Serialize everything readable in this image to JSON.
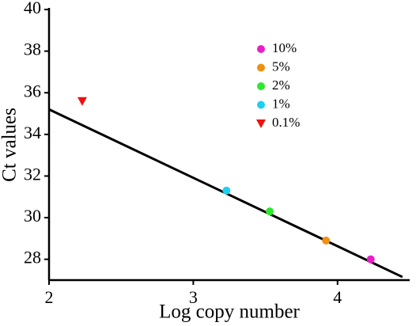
{
  "chart_data": {
    "type": "scatter",
    "xlabel": "Log copy number",
    "ylabel": "Ct values",
    "xlim": [
      2,
      4.5
    ],
    "ylim": [
      27,
      40
    ],
    "xticks": [
      2,
      3,
      4
    ],
    "yticks": [
      28,
      30,
      32,
      34,
      36,
      38,
      40
    ],
    "legend": "upper right",
    "series": [
      {
        "name": "10%",
        "color": "#e81ec8",
        "marker": "circle",
        "x": [
          4.23
        ],
        "y": [
          28.0
        ]
      },
      {
        "name": "5%",
        "color": "#f0900f",
        "marker": "circle",
        "x": [
          3.92
        ],
        "y": [
          28.9
        ]
      },
      {
        "name": "2%",
        "color": "#2ee82e",
        "marker": "circle",
        "x": [
          3.53
        ],
        "y": [
          30.3
        ]
      },
      {
        "name": "1%",
        "color": "#1ed0f0",
        "marker": "circle",
        "x": [
          3.23
        ],
        "y": [
          31.3
        ]
      },
      {
        "name": "0.1%",
        "color": "#f01010",
        "marker": "triangle-down",
        "x": [
          2.23
        ],
        "y": [
          35.6
        ]
      }
    ],
    "fit": {
      "color": "#000000",
      "x": [
        2,
        4.45
      ],
      "y": [
        35.2,
        27.15
      ]
    }
  }
}
